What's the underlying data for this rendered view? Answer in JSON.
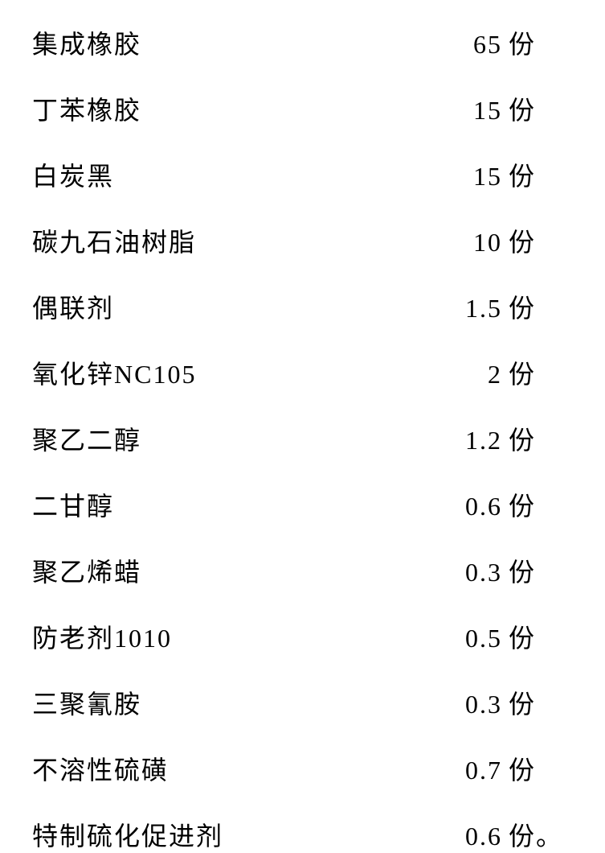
{
  "ingredients": [
    {
      "name": "集成橡胶",
      "amount": "65",
      "unit": "份"
    },
    {
      "name": "丁苯橡胶",
      "amount": "15",
      "unit": "份"
    },
    {
      "name": "白炭黑",
      "amount": "15",
      "unit": "份"
    },
    {
      "name": "碳九石油树脂",
      "amount": "10",
      "unit": "份"
    },
    {
      "name": "偶联剂",
      "amount": "1.5",
      "unit": "份"
    },
    {
      "name": "氧化锌NC105",
      "amount": "2",
      "unit": "份"
    },
    {
      "name": "聚乙二醇",
      "amount": "1.2",
      "unit": "份"
    },
    {
      "name": "二甘醇",
      "amount": "0.6",
      "unit": "份"
    },
    {
      "name": "聚乙烯蜡",
      "amount": "0.3",
      "unit": "份"
    },
    {
      "name": "防老剂1010",
      "amount": "0.5",
      "unit": "份"
    },
    {
      "name": "三聚氰胺",
      "amount": "0.3",
      "unit": "份"
    },
    {
      "name": "不溶性硫磺",
      "amount": "0.7",
      "unit": "份"
    },
    {
      "name": "特制硫化促进剂",
      "amount": "0.6",
      "unit": "份。"
    }
  ],
  "styling": {
    "font_family": "KaiTi",
    "font_size": 32,
    "text_color": "#000000",
    "background_color": "#ffffff",
    "row_spacing": 36,
    "letter_spacing": 2
  }
}
